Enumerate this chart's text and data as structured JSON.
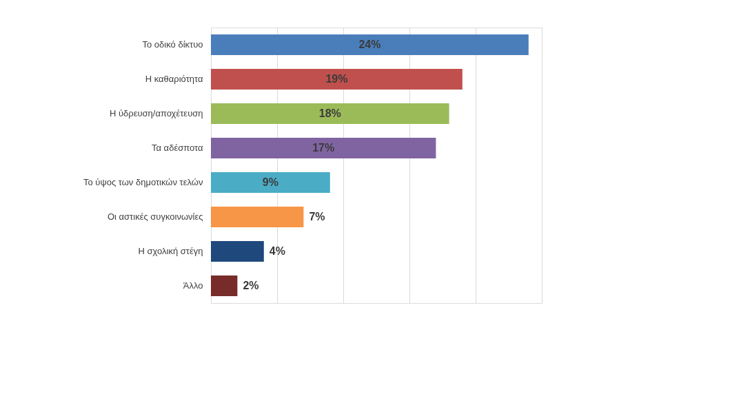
{
  "chart_data": {
    "type": "bar",
    "orientation": "horizontal",
    "categories": [
      "Το οδικό δίκτυο",
      "Η καθαριότητα",
      "Η ύδρευση/αποχέτευση",
      "Τα αδέσποτα",
      "Το ύψος των δημοτικών τελών",
      "Οι αστικές συγκοινωνίες",
      "Η σχολική στέγη",
      "Άλλο"
    ],
    "values": [
      24,
      19,
      18,
      17,
      9,
      7,
      4,
      2
    ],
    "colors": [
      "#4a7ebb",
      "#c0504d",
      "#9bbb59",
      "#8064a2",
      "#4bacc6",
      "#f79646",
      "#1f497d",
      "#772c2a"
    ],
    "value_labels": [
      "24%",
      "19%",
      "18%",
      "17%",
      "9%",
      "7%",
      "4%",
      "2%"
    ],
    "xlim": [
      0,
      25
    ],
    "xticks": [
      {
        "value": 0,
        "label": null
      },
      {
        "value": 5,
        "label": null
      },
      {
        "value": 10,
        "label": null
      },
      {
        "value": 15,
        "label": null
      },
      {
        "value": 20,
        "label": null
      },
      {
        "value": 25,
        "label": null
      }
    ],
    "grid": "x",
    "tick_labels": "y"
  }
}
